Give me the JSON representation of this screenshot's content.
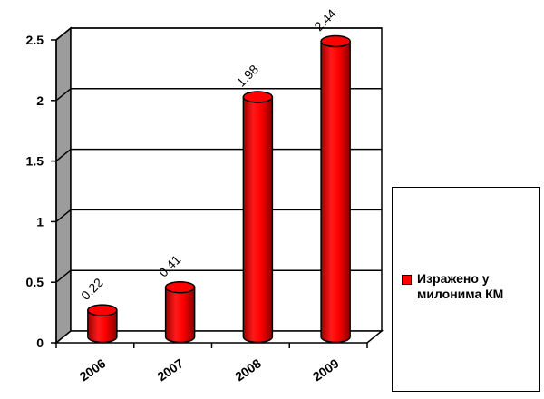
{
  "chart_data": {
    "type": "bar",
    "categories": [
      "2006",
      "2007",
      "2008",
      "2009"
    ],
    "series": [
      {
        "name": "Изражено у милонима КМ",
        "values": [
          0.22,
          0.41,
          1.98,
          2.44
        ],
        "color": "#ff0000"
      }
    ],
    "data_labels": [
      "0.22",
      "0.41",
      "1.98",
      "2.44"
    ],
    "y_ticks": [
      "0",
      "0.5",
      "1",
      "1.5",
      "2",
      "2.5"
    ],
    "ylim": [
      0,
      2.5
    ],
    "grid": true,
    "legend_position": "right",
    "style": "3d-cylinder"
  }
}
